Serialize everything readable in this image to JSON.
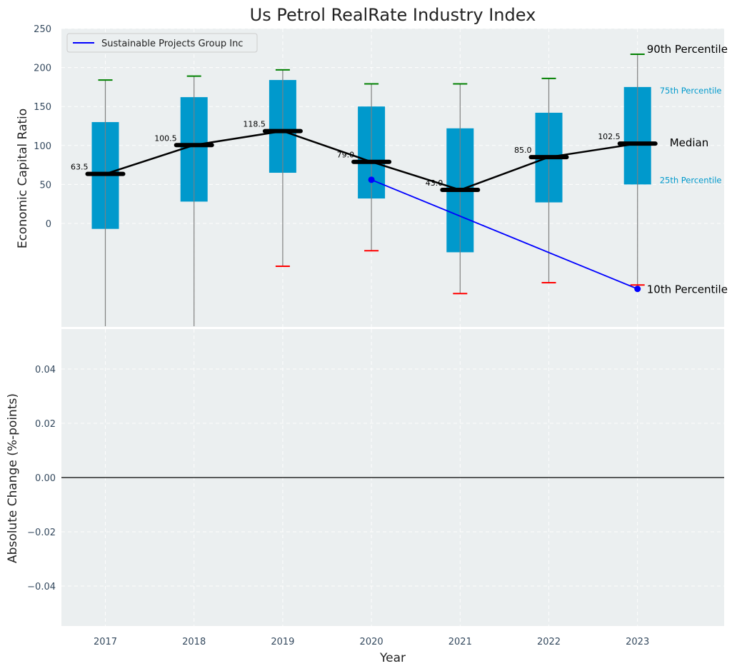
{
  "chart_data": {
    "type": "box",
    "title": "Us Petrol RealRate Industry Index",
    "xlabel": "Year",
    "categories": [
      "2017",
      "2018",
      "2019",
      "2020",
      "2021",
      "2022",
      "2023"
    ],
    "top_panel": {
      "ylabel": "Economic Capital Ratio",
      "ylim": [
        -132,
        250
      ],
      "yticks": [
        "0",
        "50",
        "100",
        "150",
        "200",
        "250"
      ],
      "p10": [
        null,
        null,
        -55,
        -35,
        -90,
        -76,
        -79
      ],
      "p25": [
        -7,
        28,
        65,
        32,
        -37,
        27,
        50
      ],
      "median": [
        63.5,
        100.5,
        118.5,
        79.0,
        43.0,
        85.0,
        102.5
      ],
      "median_labels": [
        "63.5",
        "100.5",
        "118.5",
        "79.0",
        "43.0",
        "85.0",
        "102.5"
      ],
      "p75": [
        130,
        162,
        184,
        150,
        122,
        142,
        175
      ],
      "p90": [
        184,
        189,
        197,
        179,
        179,
        186,
        217
      ],
      "whisker_low": [
        -132,
        -132,
        -55,
        -35,
        -90,
        -76,
        -79
      ],
      "company": {
        "name": "Sustainable Projects Group Inc",
        "points": [
          {
            "x": "2020",
            "y": 56
          },
          {
            "x": "2023",
            "y": -84
          }
        ],
        "color": "#0000ff"
      },
      "annotations": {
        "p90": "90th Percentile",
        "p75": "75th Percentile",
        "median": "Median",
        "p25": "25th Percentile",
        "p10": "10th Percentile"
      },
      "colors": {
        "box": "#0099cc",
        "median": "#000000",
        "p90_cap": "#008000",
        "p10_cap": "#ff0000",
        "whisker": "#808080",
        "panel_bg": "#ebeff0",
        "annot_small": "#0099cc"
      }
    },
    "bottom_panel": {
      "ylabel": "Absolute Change (%-points)",
      "ylim": [
        -0.055,
        0.055
      ],
      "yticks": [
        "−0.04",
        "−0.02",
        "0.00",
        "0.02",
        "0.04"
      ],
      "ytick_values": [
        -0.04,
        -0.02,
        0,
        0.02,
        0.04
      ]
    }
  }
}
